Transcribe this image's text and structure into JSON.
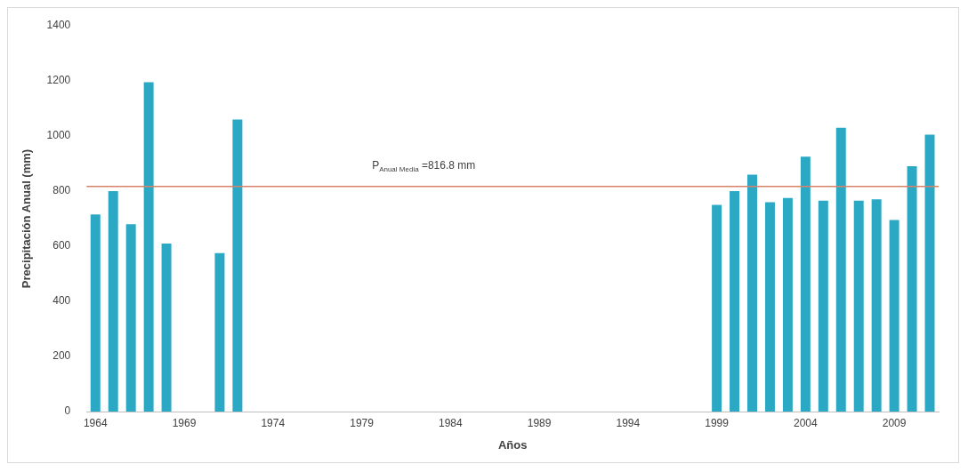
{
  "chart_data": {
    "type": "bar",
    "xlabel": "Años",
    "ylabel": "Precipitación Anual (mm)",
    "categories": [
      "1964",
      null,
      null,
      null,
      null,
      "1969",
      null,
      null,
      null,
      null,
      "1974",
      null,
      null,
      null,
      null,
      "1979",
      null,
      null,
      null,
      null,
      "1984",
      null,
      null,
      null,
      null,
      "1989",
      null,
      null,
      null,
      null,
      "1994",
      null,
      null,
      null,
      null,
      "1999",
      null,
      null,
      null,
      null,
      "2004",
      null,
      null,
      null,
      null,
      "2009",
      null,
      null
    ],
    "values": [
      715,
      800,
      680,
      1195,
      610,
      null,
      null,
      575,
      1060,
      null,
      null,
      null,
      null,
      null,
      null,
      null,
      null,
      null,
      null,
      null,
      null,
      null,
      null,
      null,
      null,
      null,
      null,
      null,
      null,
      null,
      null,
      null,
      null,
      null,
      null,
      750,
      800,
      860,
      760,
      775,
      925,
      765,
      1030,
      765,
      770,
      695,
      890,
      1005
    ],
    "color": "#2aa8c4",
    "ylim": [
      0,
      1400
    ],
    "yticks": [
      0,
      200,
      400,
      600,
      800,
      1000,
      1200,
      1400
    ],
    "ref_lines": [
      {
        "axis": "y",
        "value": 816.8,
        "label": "P$_{Anual Media}$ =816.8 mm",
        "color": "#d9826a"
      }
    ],
    "grid": false,
    "legend": false
  }
}
